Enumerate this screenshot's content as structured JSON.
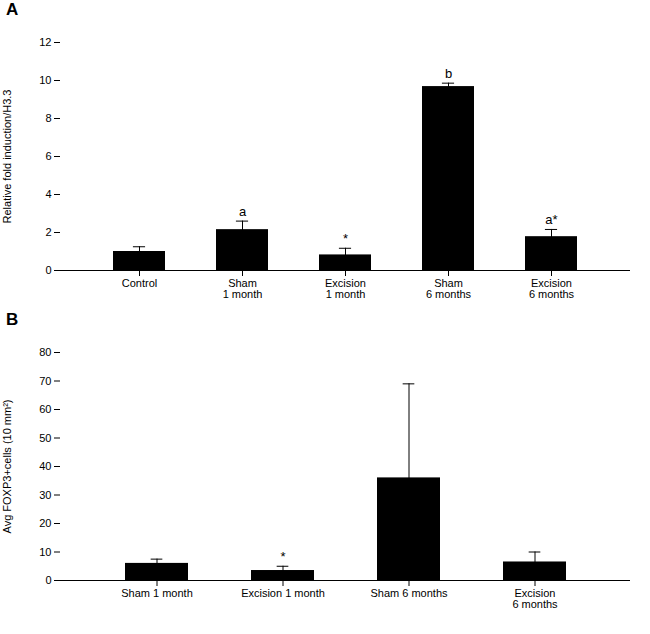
{
  "chart_data": [
    {
      "type": "bar",
      "title": "A",
      "categories": [
        "Control",
        "Sham\n1 month",
        "Excision\n1 month",
        "Sham\n6 months",
        "Excision\n6 months"
      ],
      "values": [
        1.0,
        2.15,
        0.82,
        9.68,
        1.78
      ],
      "errors": [
        0.25,
        0.45,
        0.35,
        0.18,
        0.38
      ],
      "annotations": [
        null,
        "a",
        "*",
        "b",
        "a*"
      ],
      "ylabel": "Relative fold induction/H3.3",
      "ylim": [
        0,
        12
      ],
      "yticks": [
        0,
        2,
        4,
        6,
        8,
        10,
        12
      ]
    },
    {
      "type": "bar",
      "title": "B",
      "categories": [
        "Sham 1 month",
        "Excision 1 month",
        "Sham 6 months",
        "Excision\n6 months"
      ],
      "values": [
        6.0,
        3.5,
        36.0,
        6.5
      ],
      "errors": [
        1.5,
        1.5,
        33.0,
        3.5
      ],
      "annotations": [
        null,
        "*",
        null,
        null
      ],
      "ylabel": "Avg FOXP3+cells (10 mm²)",
      "ylim": [
        0,
        80
      ],
      "yticks": [
        0,
        10,
        20,
        30,
        40,
        50,
        60,
        70,
        80
      ]
    }
  ]
}
